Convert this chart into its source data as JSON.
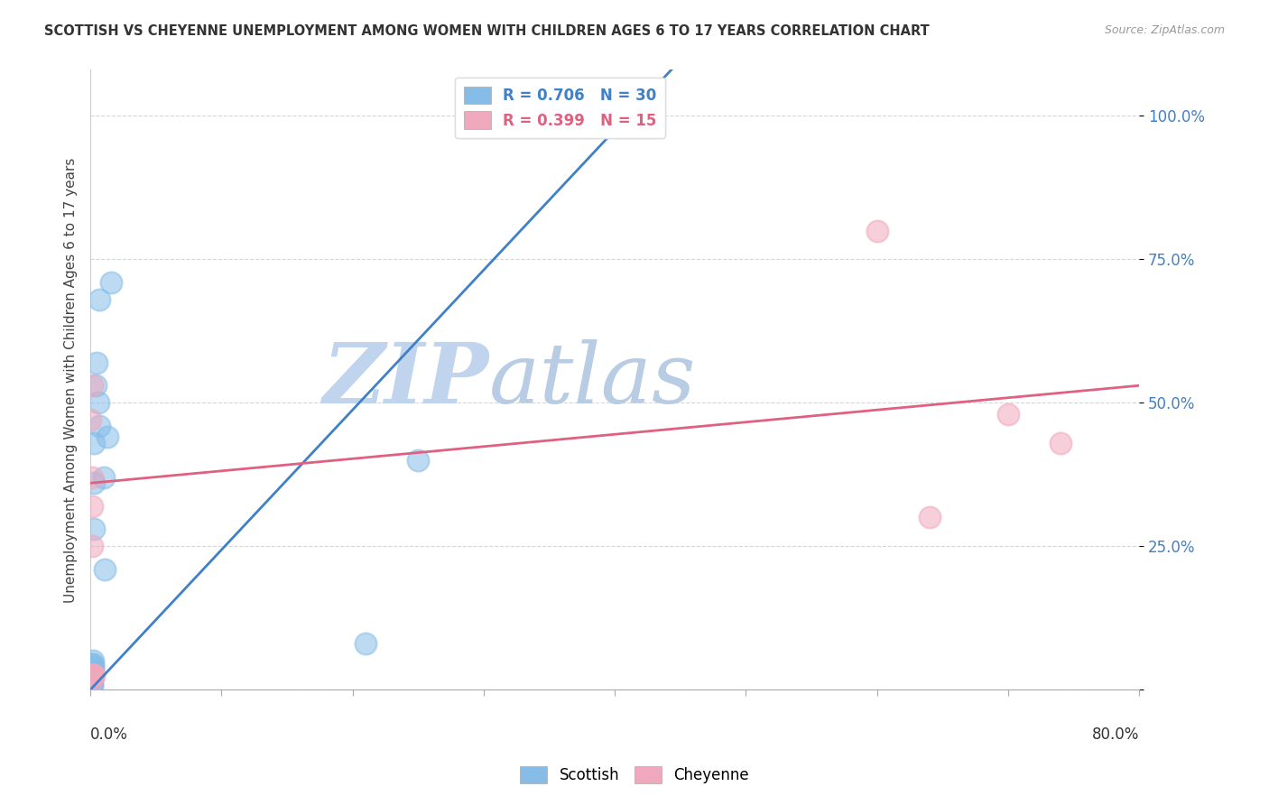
{
  "title": "SCOTTISH VS CHEYENNE UNEMPLOYMENT AMONG WOMEN WITH CHILDREN AGES 6 TO 17 YEARS CORRELATION CHART",
  "source": "Source: ZipAtlas.com",
  "ylabel": "Unemployment Among Women with Children Ages 6 to 17 years",
  "ytick_labels": [
    "",
    "25.0%",
    "50.0%",
    "75.0%",
    "100.0%"
  ],
  "ytick_values": [
    0.0,
    0.25,
    0.5,
    0.75,
    1.0
  ],
  "xlim": [
    0.0,
    0.8
  ],
  "ylim": [
    0.0,
    1.08
  ],
  "scottish_color": "#85bde8",
  "cheyenne_color": "#f0a8bc",
  "scottish_line_color": "#4080c8",
  "cheyenne_line_color": "#e06080",
  "watermark_zip_color": "#c8d8f0",
  "watermark_atlas_color": "#b0c8e0",
  "scottish_x": [
    0.0,
    0.0,
    0.0,
    0.001,
    0.001,
    0.001,
    0.001,
    0.001,
    0.001,
    0.001,
    0.001,
    0.001,
    0.002,
    0.002,
    0.002,
    0.002,
    0.003,
    0.003,
    0.003,
    0.004,
    0.005,
    0.006,
    0.007,
    0.007,
    0.01,
    0.011,
    0.013,
    0.016,
    0.21,
    0.25
  ],
  "scottish_y": [
    0.005,
    0.01,
    0.015,
    0.005,
    0.01,
    0.015,
    0.02,
    0.025,
    0.03,
    0.035,
    0.04,
    0.045,
    0.035,
    0.04,
    0.045,
    0.05,
    0.36,
    0.43,
    0.28,
    0.53,
    0.57,
    0.5,
    0.46,
    0.68,
    0.37,
    0.21,
    0.44,
    0.71,
    0.08,
    0.4
  ],
  "cheyenne_x": [
    0.0,
    0.0,
    0.001,
    0.001,
    0.001,
    0.001,
    0.001,
    0.002,
    0.002,
    0.002,
    0.003,
    0.6,
    0.64,
    0.7,
    0.74
  ],
  "cheyenne_y": [
    0.01,
    0.47,
    0.53,
    0.25,
    0.37,
    0.32,
    0.025,
    0.025,
    0.025,
    0.025,
    0.025,
    0.8,
    0.3,
    0.48,
    0.43
  ],
  "blue_trend": [
    0.0,
    0.0,
    0.8,
    1.95
  ],
  "pink_trend": [
    0.0,
    0.36,
    0.8,
    0.53
  ],
  "legend1_label": "R = 0.706   N = 30",
  "legend2_label": "R = 0.399   N = 15"
}
